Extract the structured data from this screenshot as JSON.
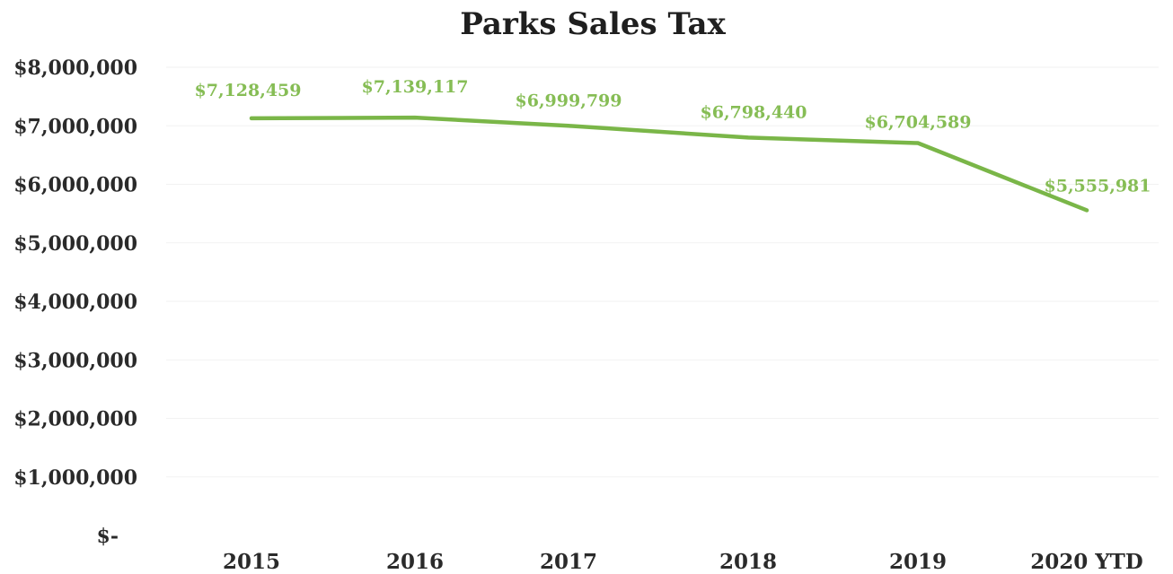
{
  "chart_data": {
    "type": "line",
    "title": "Parks Sales Tax",
    "xlabel": "",
    "ylabel": "",
    "categories": [
      "2015",
      "2016",
      "2017",
      "2018",
      "2019",
      "2020 YTD"
    ],
    "series": [
      {
        "values": [
          7128459,
          7139117,
          6999799,
          6798440,
          6704589,
          5555981
        ],
        "labels": [
          "$7,128,459",
          "$7,139,117",
          "$6,999,799",
          "$6,798,440",
          "$6,704,589",
          "$5,555,981"
        ]
      }
    ],
    "ylim": [
      0,
      8000000
    ],
    "y_ticks": [
      {
        "value": 8000000,
        "label": "$8,000,000"
      },
      {
        "value": 7000000,
        "label": "$7,000,000"
      },
      {
        "value": 6000000,
        "label": "$6,000,000"
      },
      {
        "value": 5000000,
        "label": "$5,000,000"
      },
      {
        "value": 4000000,
        "label": "$4,000,000"
      },
      {
        "value": 3000000,
        "label": "$3,000,000"
      },
      {
        "value": 2000000,
        "label": "$2,000,000"
      },
      {
        "value": 1000000,
        "label": "$1,000,000"
      },
      {
        "value": 0,
        "label": "$-"
      }
    ],
    "grid": true,
    "legend": "none",
    "colors": {
      "line": "#7ab648",
      "labels": "#86bd55"
    }
  }
}
